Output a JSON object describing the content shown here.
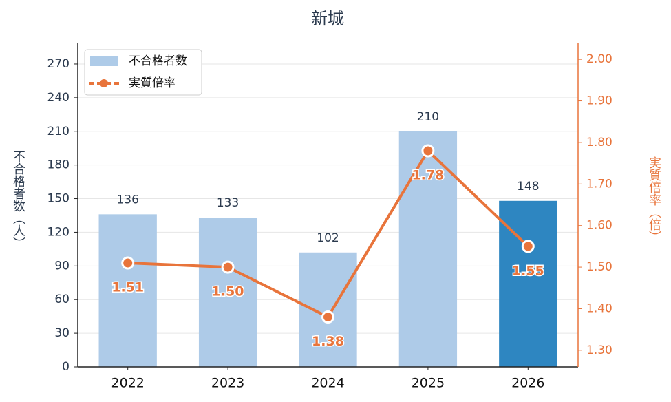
{
  "chart_data": {
    "type": "bar-line",
    "title": "新城",
    "categories": [
      "2022",
      "2023",
      "2024",
      "2025",
      "2026"
    ],
    "series": [
      {
        "name": "不合格者数",
        "type": "bar",
        "color": "#aecbe8",
        "colors": [
          "#aecbe8",
          "#aecbe8",
          "#aecbe8",
          "#aecbe8",
          "#2e86c1"
        ],
        "values": [
          136,
          133,
          102,
          210,
          148
        ]
      },
      {
        "name": "実質倍率",
        "type": "line",
        "axis": "y2",
        "color": "#e8743b",
        "values": [
          1.51,
          1.5,
          1.38,
          1.78,
          1.55
        ],
        "value_labels": [
          "1.51",
          "1.50",
          "1.38",
          "1.78",
          "1.55"
        ]
      }
    ],
    "ylabel": "不合格者数（人）",
    "y2label": "実質倍率（倍）",
    "ylim": [
      0,
      289
    ],
    "yticks": [
      0,
      30,
      60,
      90,
      120,
      150,
      180,
      210,
      240,
      270
    ],
    "y2lim": [
      1.26,
      2.04
    ],
    "y2ticks": [
      {
        "value": 1.3,
        "label": "1.30"
      },
      {
        "value": 1.4,
        "label": "1.40"
      },
      {
        "value": 1.5,
        "label": "1.50"
      },
      {
        "value": 1.6,
        "label": "1.60"
      },
      {
        "value": 1.7,
        "label": "1.70"
      },
      {
        "value": 1.8,
        "label": "1.80"
      },
      {
        "value": 1.9,
        "label": "1.90"
      },
      {
        "value": 2.0,
        "label": "2.00"
      }
    ],
    "grid": true,
    "legend": "upper-left"
  }
}
